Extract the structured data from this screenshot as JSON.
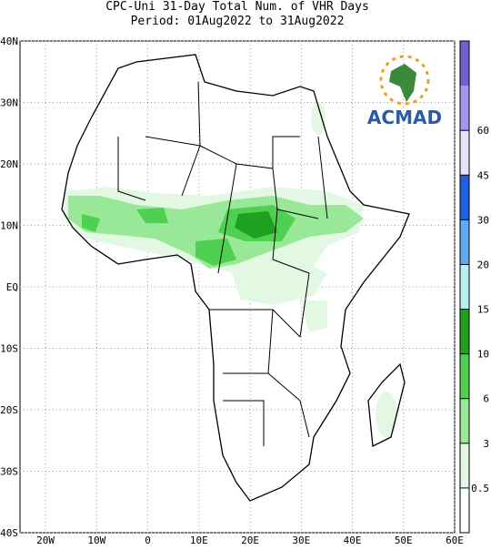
{
  "header": {
    "title": "CPC-Uni 31-Day Total Num. of VHR Days",
    "subtitle": "Period: 01Aug2022 to 31Aug2022"
  },
  "logo": {
    "text": "ACMAD"
  },
  "map": {
    "lonlim": [
      -25,
      60
    ],
    "latlim": [
      -40,
      40
    ],
    "lat_ticks": [
      {
        "value": 40,
        "label": "40N"
      },
      {
        "value": 30,
        "label": "30N"
      },
      {
        "value": 20,
        "label": "20N"
      },
      {
        "value": 10,
        "label": "10N"
      },
      {
        "value": 0,
        "label": "EQ"
      },
      {
        "value": -10,
        "label": "10S"
      },
      {
        "value": -20,
        "label": "20S"
      },
      {
        "value": -30,
        "label": "30S"
      },
      {
        "value": -40,
        "label": "40S"
      }
    ],
    "lon_ticks": [
      {
        "value": -20,
        "label": "20W"
      },
      {
        "value": -10,
        "label": "10W"
      },
      0,
      {
        "value": 10,
        "label": "10E"
      },
      {
        "value": 20,
        "label": "20E"
      },
      {
        "value": 30,
        "label": "30E"
      },
      {
        "value": 40,
        "label": "40E"
      },
      {
        "value": 50,
        "label": "50E"
      },
      {
        "value": 60,
        "label": "60E"
      }
    ]
  },
  "colorbar": {
    "levels": [
      0.5,
      3,
      6,
      10,
      15,
      20,
      30,
      45,
      60
    ],
    "colors": [
      "#ffffff",
      "#e2f8e2",
      "#98e898",
      "#50d050",
      "#20a020",
      "#b8f0f0",
      "#60aaf0",
      "#2060e0",
      "#e4e4f8",
      "#a098ec",
      "#7060d0"
    ]
  }
}
